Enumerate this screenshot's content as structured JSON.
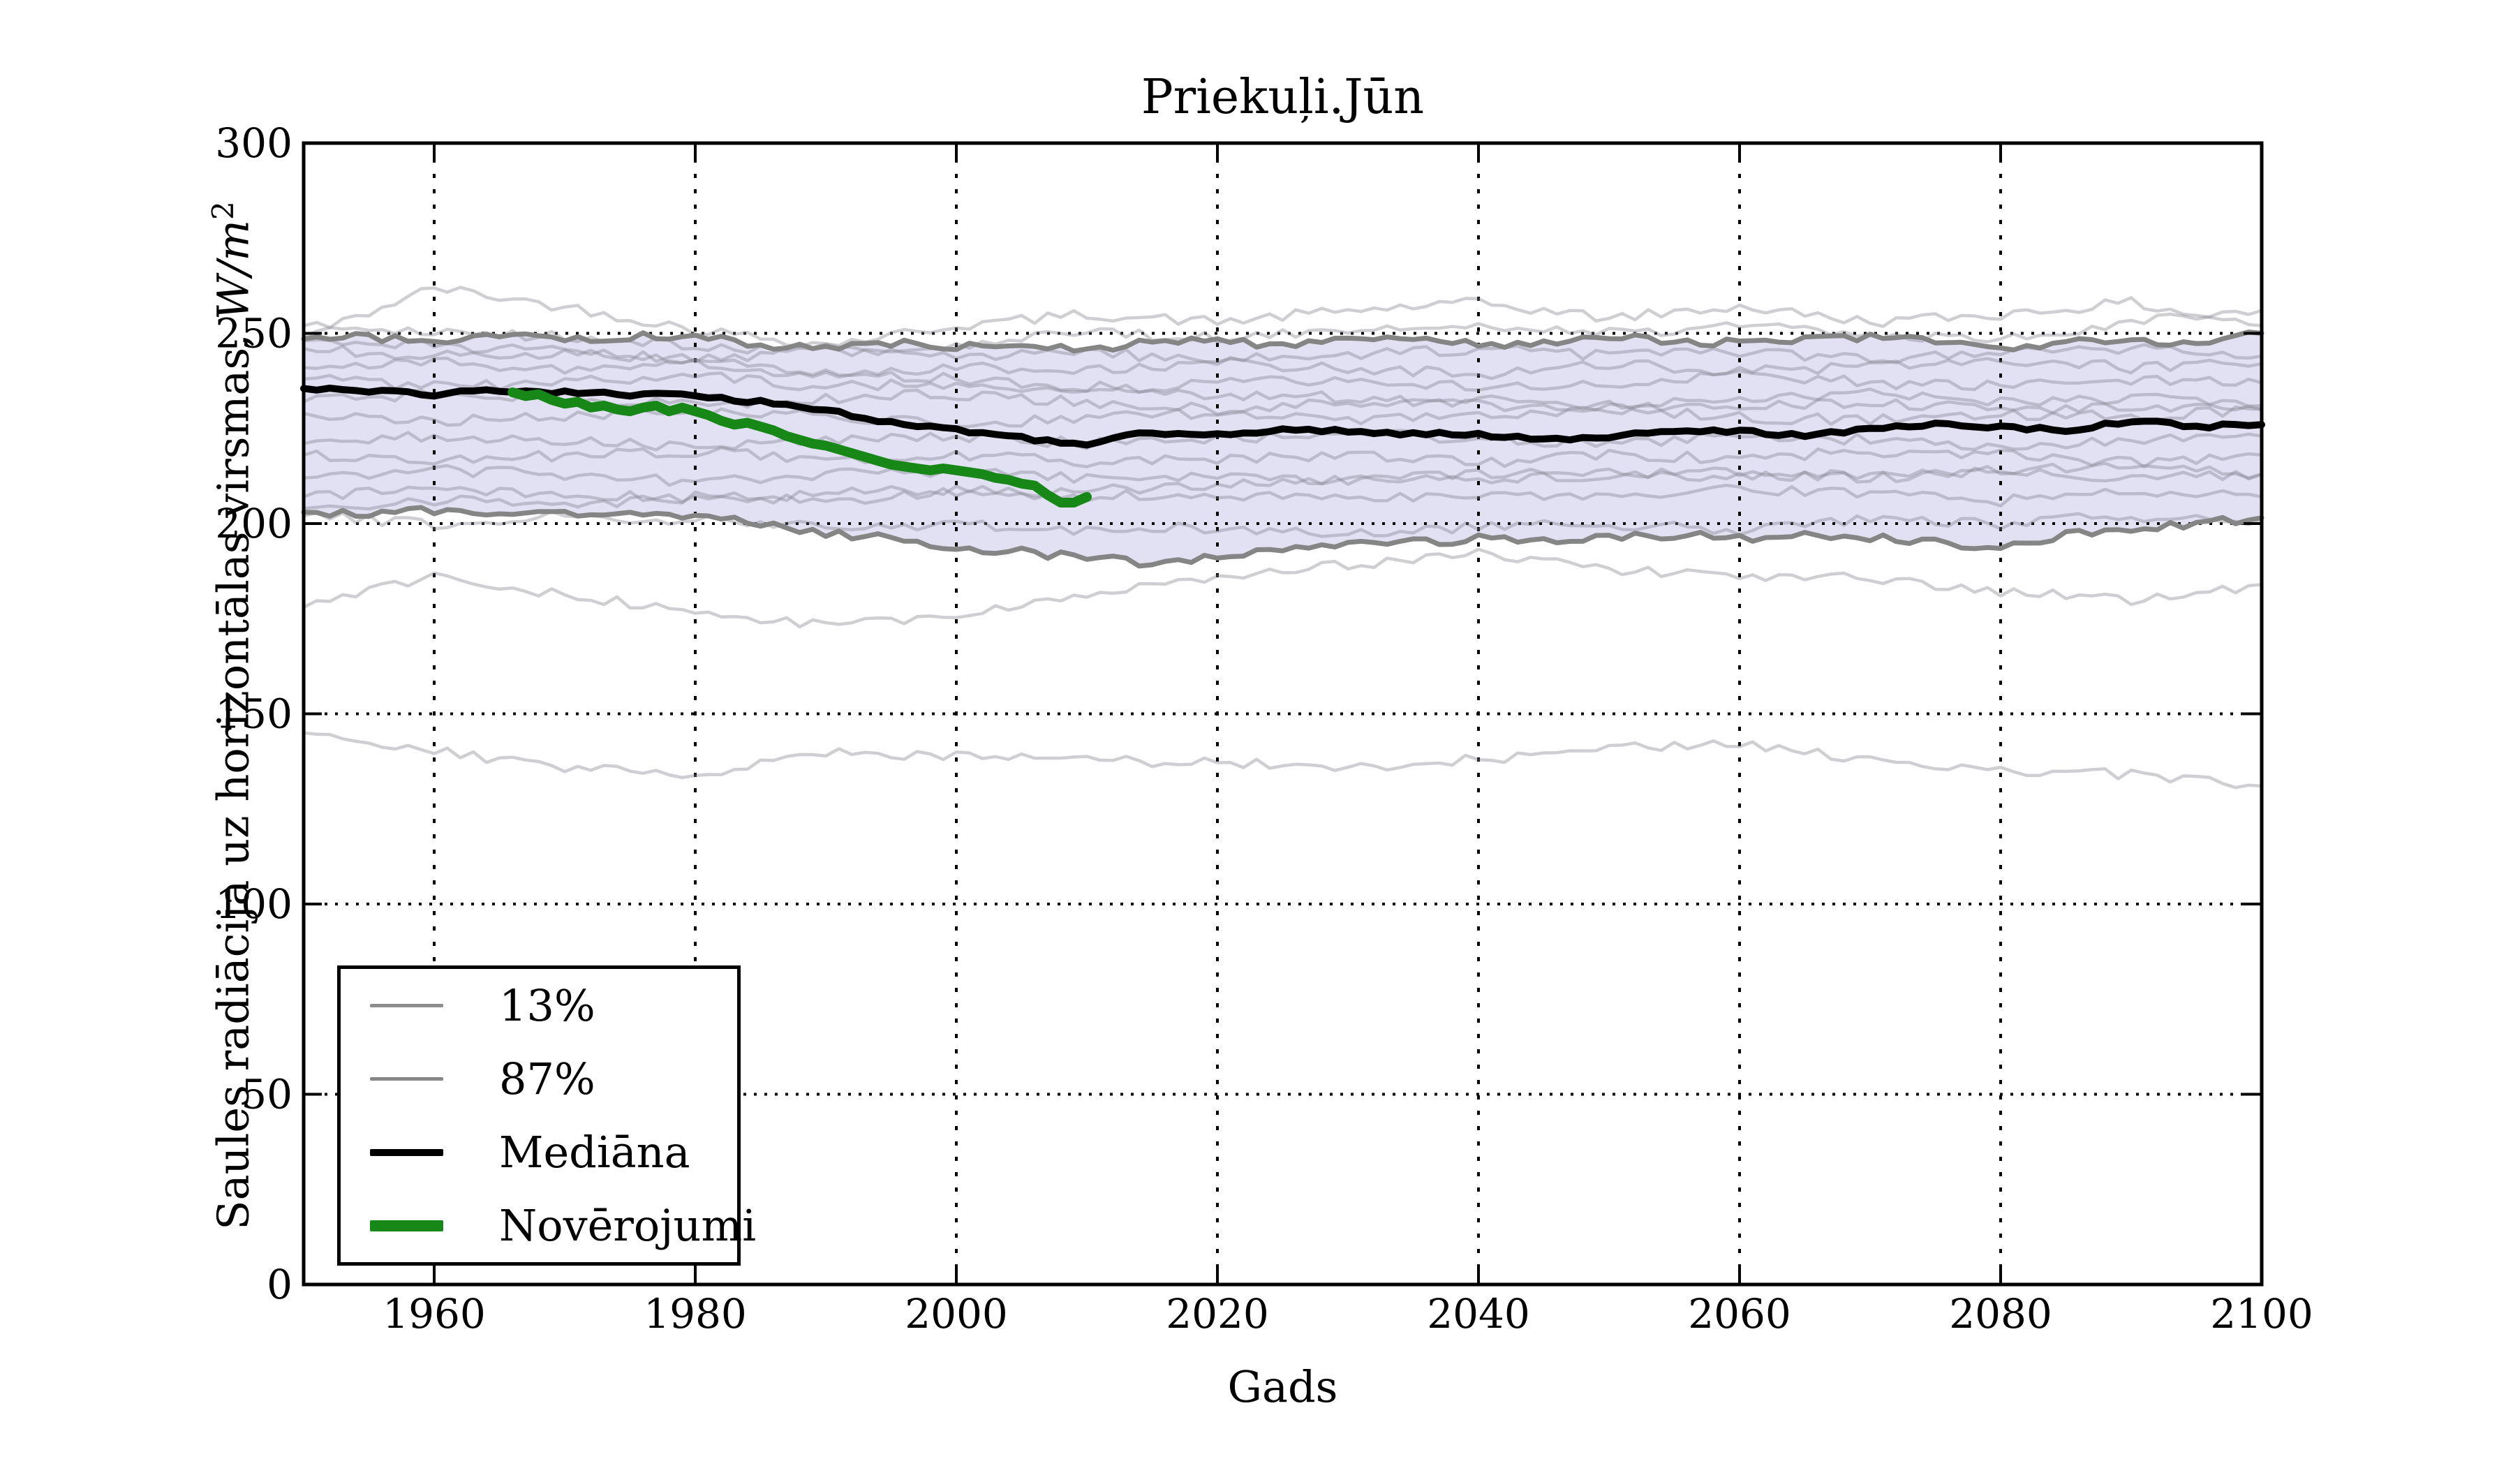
{
  "title": "Priekuļi.Jūn",
  "xlabel": "Gads",
  "ylabel": {
    "text": "Saules radiācija uz horizontālas virsmas, ",
    "math": "W/m",
    "sup": "2"
  },
  "legend": {
    "position": "lower left",
    "items": [
      {
        "label": "13%",
        "color": "#8c8c8c",
        "lw": 5
      },
      {
        "label": "87%",
        "color": "#878787",
        "lw": 5
      },
      {
        "label": "Mediāna",
        "color": "#000000",
        "lw": 10
      },
      {
        "label": "Novērojumi",
        "color": "#178717",
        "lw": 16
      }
    ]
  },
  "chart_data": {
    "type": "line",
    "title": "Priekuļi.Jūn",
    "xlabel": "Gads",
    "ylabel": "Saules radiācija uz horizontālas virsmas, W/m2",
    "xlim": [
      1950,
      2100
    ],
    "ylim": [
      0,
      300
    ],
    "x_ticks": [
      1960,
      1980,
      2000,
      2020,
      2040,
      2060,
      2080,
      2100
    ],
    "y_ticks": [
      0,
      50,
      100,
      150,
      200,
      250,
      300
    ],
    "grid": "dotted",
    "background": "#ffffff",
    "band": {
      "upper": "87%",
      "lower": "13%",
      "fill": "#e2e1f4"
    },
    "colors": {
      "ensemble": "rgba(125,125,140,0.38)",
      "percentile": "#858585",
      "median": "#000000",
      "observations": "#178717",
      "grid": "#000000"
    },
    "series": [
      {
        "name": "ensemble-upper-1",
        "color": "rgba(125,125,140,0.38)",
        "width": 4.5,
        "start": 1950,
        "step": 10,
        "jitter": 1.4,
        "values": [
          249,
          262,
          257,
          251,
          247,
          252,
          255,
          253,
          256,
          258,
          254,
          257,
          253,
          255,
          258,
          252
        ]
      },
      {
        "name": "ensemble-upper-2",
        "color": "rgba(125,125,140,0.38)",
        "width": 4.5,
        "start": 1950,
        "step": 10,
        "jitter": 1.4,
        "values": [
          252,
          250,
          249,
          247,
          245,
          247,
          250,
          249,
          251,
          252,
          250,
          252,
          250,
          248,
          253,
          256
        ]
      },
      {
        "name": "ensemble-lower-1",
        "color": "rgba(125,125,140,0.38)",
        "width": 4.5,
        "start": 1950,
        "step": 10,
        "jitter": 1.4,
        "values": [
          178,
          186,
          181,
          177,
          173,
          176,
          181,
          186,
          189,
          192,
          188,
          186,
          186,
          182,
          180,
          184
        ]
      },
      {
        "name": "ensemble-lower-2",
        "color": "rgba(125,125,140,0.38)",
        "width": 4.5,
        "start": 1950,
        "step": 10,
        "jitter": 1.4,
        "values": [
          145,
          140,
          136,
          134,
          140,
          139,
          138,
          137,
          136,
          138,
          141,
          142,
          138,
          135,
          134,
          131
        ]
      },
      {
        "name": "ensemble-1",
        "color": "rgba(125,125,140,0.38)",
        "width": 4.5,
        "start": 1950,
        "step": 10,
        "jitter": 1.4,
        "values": [
          246,
          244,
          245,
          243,
          246,
          244,
          245,
          243,
          244,
          246,
          244,
          245,
          243,
          245,
          246,
          244
        ]
      },
      {
        "name": "ensemble-2",
        "color": "rgba(125,125,140,0.38)",
        "width": 4.5,
        "start": 1950,
        "step": 10,
        "jitter": 1.4,
        "values": [
          241,
          243,
          240,
          242,
          239,
          241,
          240,
          242,
          241,
          239,
          242,
          240,
          241,
          243,
          241,
          242
        ]
      },
      {
        "name": "ensemble-3",
        "color": "rgba(125,125,140,0.38)",
        "width": 4.5,
        "start": 1950,
        "step": 10,
        "jitter": 1.4,
        "values": [
          238,
          236,
          237,
          239,
          236,
          237,
          235,
          237,
          238,
          236,
          237,
          239,
          237,
          236,
          238,
          237
        ]
      },
      {
        "name": "ensemble-4",
        "color": "rgba(125,125,140,0.38)",
        "width": 4.5,
        "start": 1950,
        "step": 10,
        "jitter": 1.4,
        "values": [
          232,
          234,
          233,
          231,
          233,
          234,
          232,
          230,
          232,
          233,
          231,
          233,
          234,
          232,
          233,
          231
        ]
      },
      {
        "name": "ensemble-5",
        "color": "rgba(125,125,140,0.38)",
        "width": 4.5,
        "start": 1950,
        "step": 10,
        "jitter": 1.4,
        "values": [
          229,
          227,
          228,
          230,
          228,
          226,
          228,
          229,
          227,
          228,
          230,
          228,
          227,
          229,
          228,
          230
        ]
      },
      {
        "name": "ensemble-6",
        "color": "rgba(125,125,140,0.38)",
        "width": 4.5,
        "start": 1950,
        "step": 10,
        "jitter": 1.4,
        "values": [
          248,
          247,
          245,
          243,
          240,
          238,
          236,
          234,
          233,
          231,
          230,
          231,
          232,
          230,
          231,
          230
        ]
      },
      {
        "name": "ensemble-7",
        "color": "rgba(125,125,140,0.38)",
        "width": 4.5,
        "start": 1950,
        "step": 10,
        "jitter": 1.4,
        "values": [
          221,
          223,
          222,
          220,
          222,
          223,
          221,
          222,
          224,
          222,
          221,
          223,
          222,
          220,
          222,
          223
        ]
      },
      {
        "name": "ensemble-8",
        "color": "rgba(125,125,140,0.38)",
        "width": 4.5,
        "start": 1950,
        "step": 10,
        "jitter": 1.4,
        "values": [
          218,
          216,
          218,
          219,
          217,
          218,
          216,
          217,
          218,
          216,
          218,
          217,
          219,
          218,
          216,
          218
        ]
      },
      {
        "name": "ensemble-9",
        "color": "rgba(125,125,140,0.38)",
        "width": 4.5,
        "start": 1950,
        "step": 10,
        "jitter": 1.4,
        "values": [
          212,
          214,
          213,
          211,
          213,
          214,
          212,
          213,
          211,
          213,
          214,
          212,
          213,
          214,
          212,
          213
        ]
      },
      {
        "name": "ensemble-10",
        "color": "rgba(125,125,140,0.38)",
        "width": 4.5,
        "start": 1950,
        "step": 10,
        "jitter": 1.4,
        "values": [
          207,
          209,
          208,
          206,
          208,
          209,
          207,
          208,
          206,
          208,
          207,
          209,
          208,
          206,
          208,
          207
        ]
      },
      {
        "name": "ensemble-11",
        "color": "rgba(125,125,140,0.38)",
        "width": 4.5,
        "start": 1950,
        "step": 10,
        "jitter": 1.4,
        "values": [
          204,
          206,
          205,
          207,
          206,
          208,
          209,
          210,
          212,
          211,
          213,
          214,
          212,
          214,
          215,
          213
        ]
      },
      {
        "name": "ensemble-12",
        "color": "rgba(125,125,140,0.38)",
        "width": 4.5,
        "start": 1950,
        "step": 10,
        "jitter": 1.4,
        "values": [
          202,
          200,
          202,
          201,
          199,
          200,
          198,
          199,
          197,
          199,
          200,
          198,
          201,
          200,
          202,
          201
        ]
      },
      {
        "name": "13%",
        "color": "#858585",
        "width": 7,
        "start": 1950,
        "step": 5,
        "jitter": 1.1,
        "values": [
          203,
          202.5,
          203.5,
          202,
          202.5,
          203,
          201.5,
          200,
          197.5,
          196,
          194,
          192.5,
          191,
          189.5,
          191,
          193,
          194.5,
          195,
          196,
          195.5,
          196.5,
          197,
          196,
          197.5,
          196.5,
          195,
          193.5,
          197,
          198.5,
          200,
          201.5
        ]
      },
      {
        "name": "87%",
        "color": "#858585",
        "width": 7,
        "start": 1950,
        "step": 5,
        "jitter": 1.1,
        "values": [
          248.5,
          249,
          247.5,
          249.5,
          248.5,
          249,
          249.5,
          247,
          246,
          247.5,
          246.5,
          247,
          246,
          247.5,
          248,
          247,
          249,
          248,
          247.5,
          247,
          249.5,
          248,
          247.5,
          248.5,
          249,
          248,
          246,
          247.5,
          248.5,
          247,
          250
        ]
      },
      {
        "name": "Mediāna",
        "color": "#000000",
        "width": 10,
        "start": 1950,
        "step": 5,
        "jitter": 0.5,
        "values": [
          235.5,
          235,
          234,
          235,
          234.5,
          234,
          233.5,
          232,
          230,
          226.5,
          224.5,
          222.5,
          221,
          224,
          223.5,
          224.5,
          224.5,
          223.5,
          223.5,
          222,
          223,
          224,
          224.5,
          223,
          225,
          226,
          225.5,
          224.5,
          227,
          225.5,
          226
        ]
      },
      {
        "name": "Novērojumi",
        "color": "#178717",
        "width": 14,
        "start": 1966,
        "step": 1,
        "jitter": 0,
        "values": [
          234.5,
          233.5,
          234,
          232.5,
          231.5,
          232,
          230.5,
          231,
          230,
          229.5,
          230.5,
          231,
          229.5,
          230.5,
          229.5,
          228.5,
          227,
          226,
          226.5,
          225.5,
          224.5,
          223,
          222,
          221,
          220.5,
          219.5,
          218.5,
          217.5,
          216.5,
          215.5,
          215,
          214.5,
          214,
          214.5,
          214,
          213.5,
          213,
          212,
          211.5,
          210.5,
          210,
          207.5,
          205.5,
          205.5,
          207
        ]
      }
    ]
  }
}
